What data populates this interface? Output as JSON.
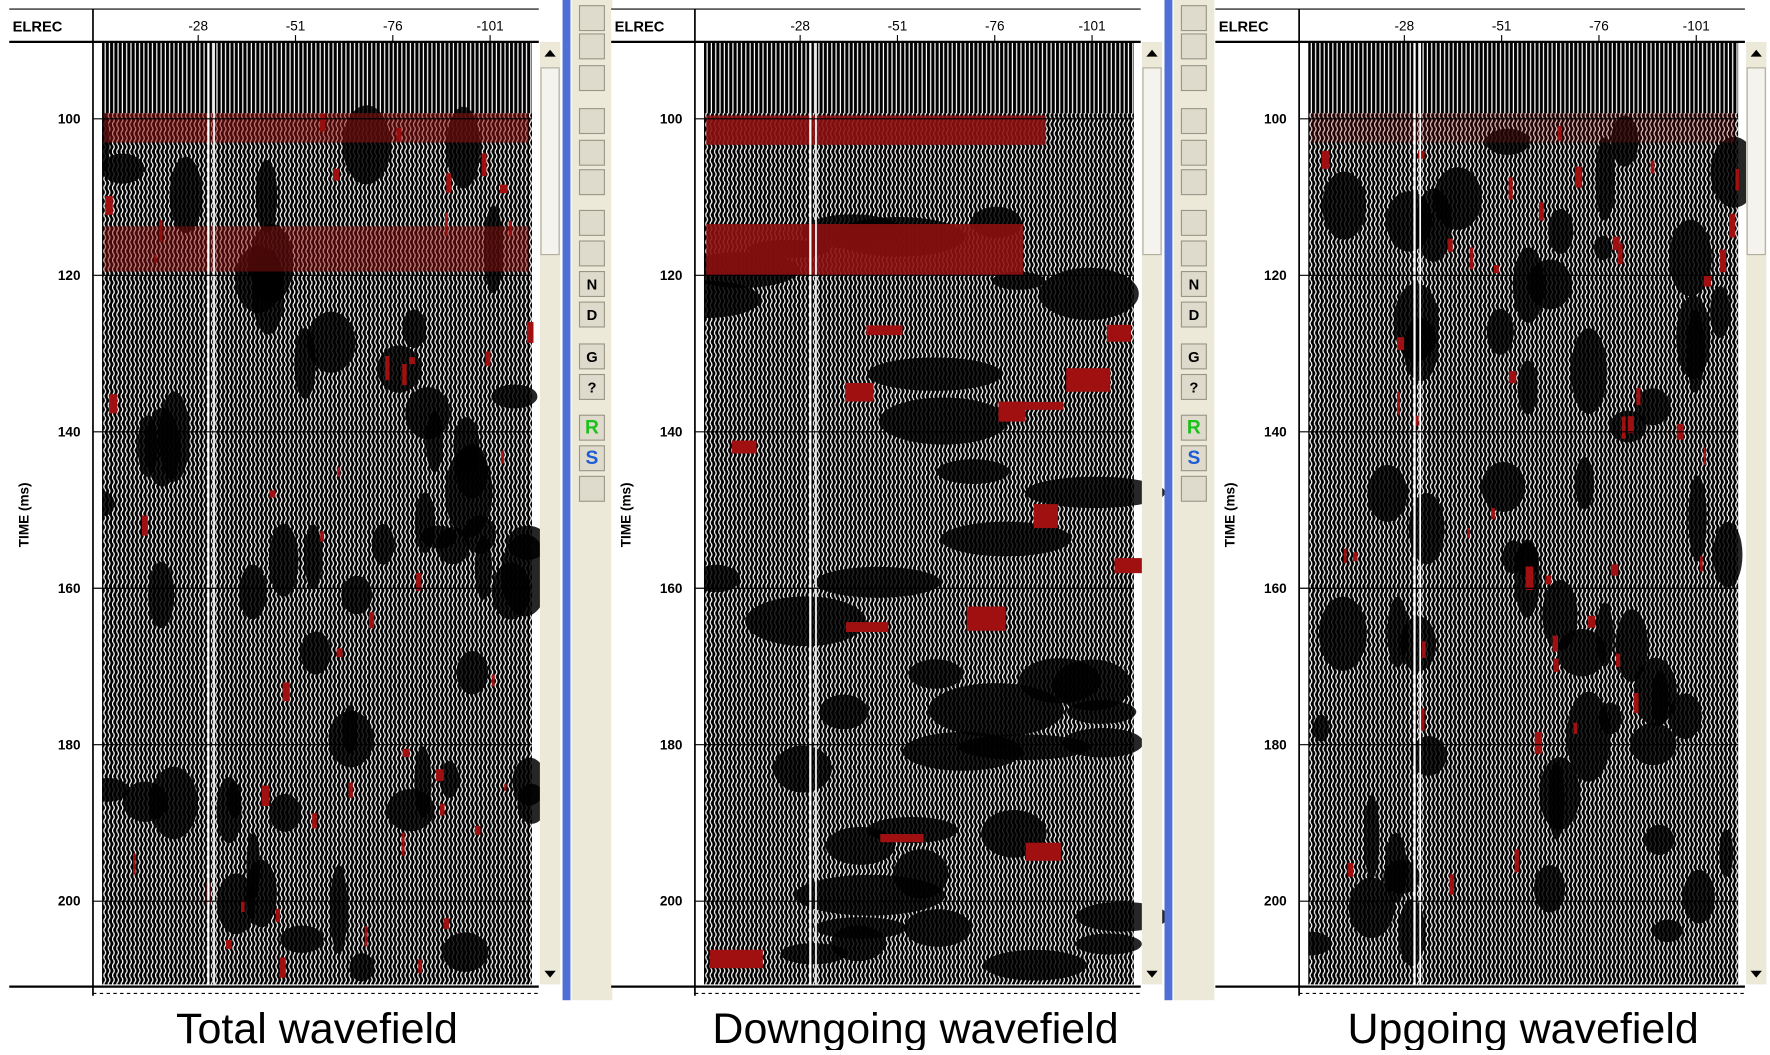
{
  "panels": [
    {
      "header": "ELREC",
      "x_ticks": [
        "-28",
        "-51",
        "-76",
        "-101"
      ],
      "y_axis_label": "TIME (ms)",
      "y_ticks": [
        "100",
        "120",
        "140",
        "160",
        "180",
        "200"
      ],
      "caption": "Total wavefield"
    },
    {
      "header": "ELREC",
      "x_ticks": [
        "-28",
        "-51",
        "-76",
        "-101"
      ],
      "y_axis_label": "TIME (ms)",
      "y_ticks": [
        "100",
        "120",
        "140",
        "160",
        "180",
        "200"
      ],
      "caption": "Downgoing wavefield"
    },
    {
      "header": "ELREC",
      "x_ticks": [
        "-28",
        "-51",
        "-76",
        "-101"
      ],
      "y_axis_label": "TIME (ms)",
      "y_ticks": [
        "100",
        "120",
        "140",
        "160",
        "180",
        "200"
      ],
      "caption": "Upgoing wavefield"
    }
  ],
  "toolbar_labels": [
    "N",
    "D",
    "G",
    "?",
    "R",
    "S"
  ]
}
